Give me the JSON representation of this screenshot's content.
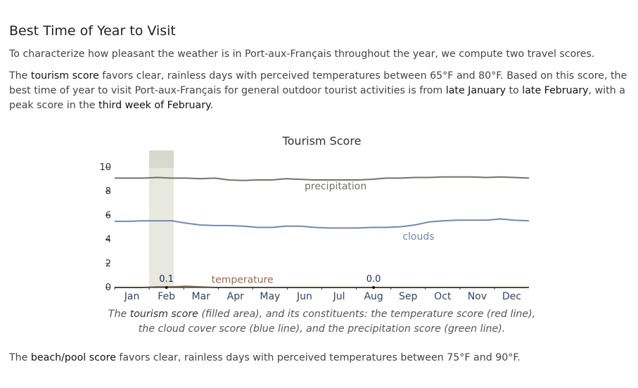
{
  "section": {
    "heading": "Best Time of Year to Visit",
    "intro": "To characterize how pleasant the weather is in Port-aux-Français throughout the year, we compute two travel scores.",
    "tourism_paragraph": {
      "p1": "The ",
      "term": "tourism score",
      "p2": " favors clear, rainless days with perceived temperatures between 65°F and 80°F. Based on this score, the best time of year to visit Port-aux-Français for general outdoor tourist activities is from ",
      "start": "late January",
      "p3": " to ",
      "end": "late February",
      "p4": ", with a peak score in the ",
      "peak": "third week of February",
      "p5": "."
    },
    "beach_paragraph": {
      "p1": "The ",
      "term": "beach/pool score",
      "p2": " favors clear, rainless days with perceived temperatures between 75°F and 90°F."
    }
  },
  "chart_title": "Tourism Score",
  "caption": {
    "p1": "The ",
    "term": "tourism score",
    "p2": " (filled area), and its constituents: the temperature score (red line), the cloud cover score (blue line), and the precipitation score (green line)."
  },
  "chart_data": {
    "type": "line",
    "title": "Tourism Score",
    "x_labels": [
      "Jan",
      "Feb",
      "Mar",
      "Apr",
      "May",
      "Jun",
      "Jul",
      "Aug",
      "Sep",
      "Oct",
      "Nov",
      "Dec"
    ],
    "ylim": [
      0,
      10
    ],
    "y_ticks": [
      0,
      2,
      4,
      6,
      8,
      10
    ],
    "highlight_period": [
      "late January",
      "late February"
    ],
    "series": [
      {
        "name": "precipitation",
        "color": "#707565",
        "values": [
          9.1,
          9.1,
          9.1,
          9.15,
          9.1,
          9.1,
          9.05,
          9.1,
          8.95,
          8.9,
          8.95,
          8.95,
          9.05,
          9.0,
          8.95,
          8.95,
          8.95,
          8.95,
          9.0,
          9.1,
          9.1,
          9.15,
          9.15,
          9.2,
          9.2,
          9.2,
          9.15,
          9.2,
          9.15,
          9.1
        ]
      },
      {
        "name": "clouds",
        "color": "#7389ad",
        "values": [
          5.5,
          5.5,
          5.55,
          5.55,
          5.55,
          5.35,
          5.2,
          5.15,
          5.15,
          5.1,
          5.0,
          5.0,
          5.1,
          5.1,
          5.0,
          4.95,
          4.95,
          4.95,
          5.0,
          5.0,
          5.05,
          5.2,
          5.45,
          5.55,
          5.6,
          5.6,
          5.6,
          5.7,
          5.6,
          5.55
        ]
      },
      {
        "name": "temperature",
        "color": "#8a6a4a",
        "values": [
          0.0,
          0.0,
          0.0,
          0.05,
          0.05,
          0.1,
          0.05,
          0.0,
          0.0,
          0.0,
          0.0,
          0.0,
          0.0,
          0.0,
          0.0,
          0.0,
          0.0,
          0.0,
          0.0,
          0.0,
          0.0,
          0.0,
          0.0,
          0.0,
          0.0,
          0.0,
          0.0,
          0.0,
          0.0,
          0.0
        ]
      }
    ],
    "annotations": [
      {
        "label": "0.1",
        "month": "Feb"
      },
      {
        "label": "0.0",
        "month": "Aug"
      }
    ],
    "series_labels": [
      {
        "name": "precipitation",
        "color": "#707565",
        "at_month": 6.4,
        "value": 8.4
      },
      {
        "name": "clouds",
        "color": "#7389ad",
        "at_month": 8.8,
        "value": 4.2
      },
      {
        "name": "temperature",
        "color": "#9a6a4a",
        "at_month": 3.7,
        "value": 0.6
      }
    ],
    "colors": {
      "highlight_band": "#e8e8df",
      "highlight_top": "#d8d8cc",
      "axis": "#333333",
      "tick_text": "#333333",
      "month_text": "#334466"
    }
  }
}
